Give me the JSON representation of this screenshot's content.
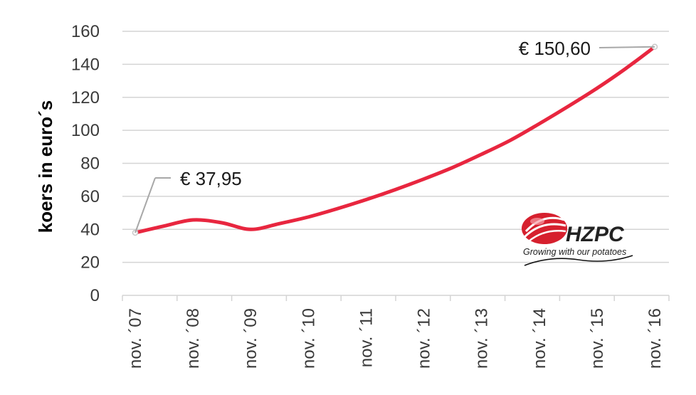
{
  "chart_data": {
    "type": "line",
    "ylabel": "koers in euro´s",
    "xlabel": "",
    "ylim": [
      0,
      160
    ],
    "yticks": [
      0,
      20,
      40,
      60,
      80,
      100,
      120,
      140,
      160
    ],
    "grid": true,
    "categories": [
      "nov. ´07",
      "nov. ´08",
      "nov. ´09",
      "nov. ´10",
      "nov. ´11",
      "nov. ´12",
      "nov. ´13",
      "nov. ´14",
      "nov. ´15",
      "nov. ´16"
    ],
    "series": [
      {
        "color": "#e8263f",
        "x": [
          0,
          0.5,
          1,
          1.5,
          2,
          2.5,
          3,
          3.5,
          4,
          4.5,
          5,
          5.5,
          6,
          6.5,
          7,
          7.5,
          8,
          8.5,
          9
        ],
        "values": [
          37.95,
          42,
          45.7,
          44,
          40,
          43.5,
          47.5,
          52.5,
          58,
          64,
          70.5,
          77.5,
          85.5,
          94,
          104,
          114.5,
          125.5,
          137.5,
          150.6
        ]
      }
    ],
    "annotations": [
      {
        "text": "€ 37,95",
        "index": 0
      },
      {
        "text": "€ 150,60",
        "index": 18
      }
    ]
  },
  "logo": {
    "name": "HZPC",
    "tagline": "Growing with our potatoes",
    "color": "#d6202e"
  }
}
